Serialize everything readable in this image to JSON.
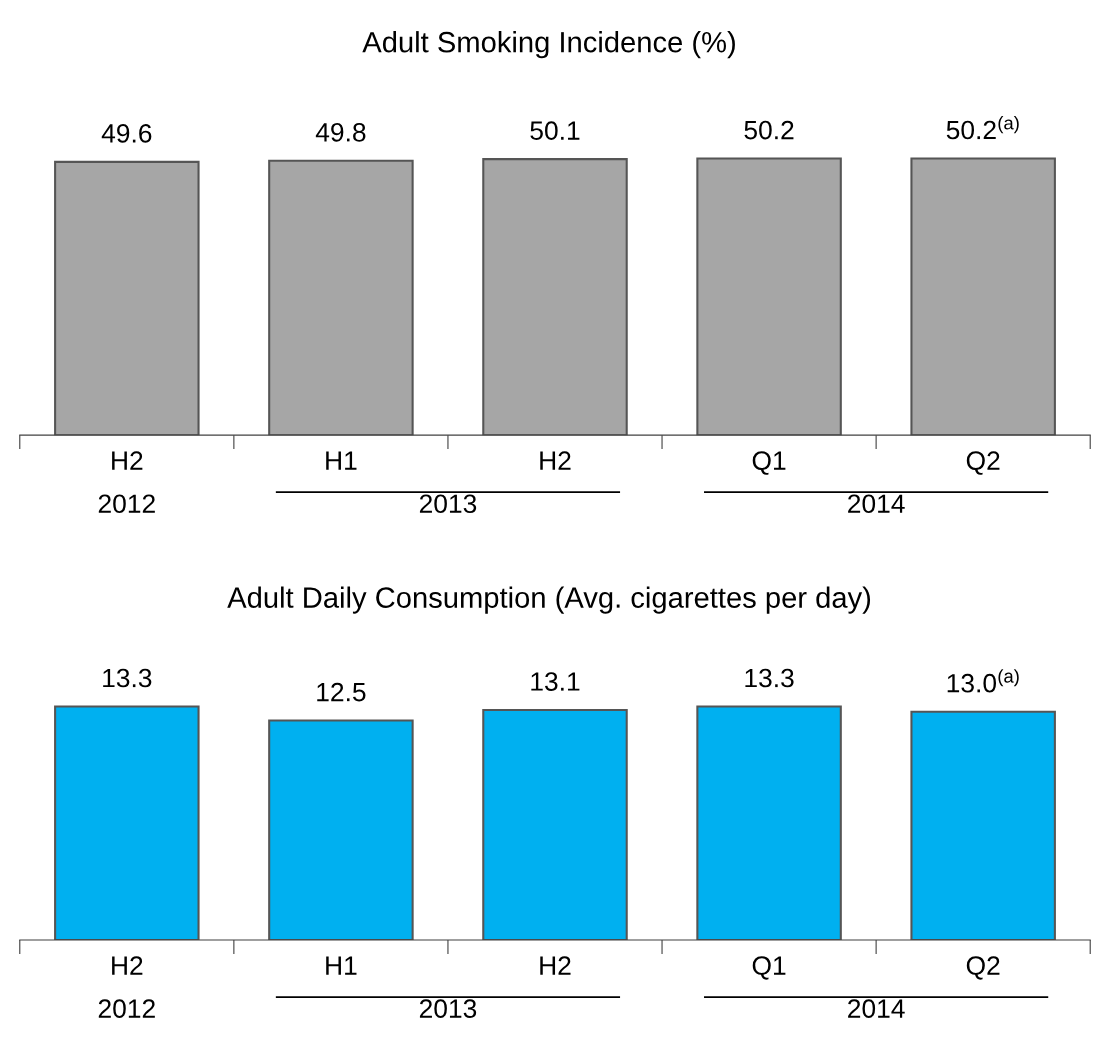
{
  "chart_data": [
    {
      "type": "bar",
      "title": "Adult Smoking Incidence (%)",
      "categories": [
        "H2",
        "H1",
        "H2",
        "Q1",
        "Q2"
      ],
      "values": [
        49.6,
        49.8,
        50.1,
        50.2,
        50.2
      ],
      "value_labels": [
        "49.6",
        "49.8",
        "50.1",
        "50.2",
        "50.2$^{(a)}$"
      ],
      "color": "#a6a6a6",
      "tick_labels": "x",
      "annotations": [
        "2012",
        "2013",
        "2014"
      ]
    },
    {
      "type": "bar",
      "title": "Adult Daily Consumption (Avg. cigarettes per day)",
      "categories": [
        "H2",
        "H1",
        "H2",
        "Q1",
        "Q2"
      ],
      "values": [
        13.3,
        12.5,
        13.1,
        13.3,
        13.0
      ],
      "value_labels": [
        "13.3",
        "12.5",
        "13.1",
        "13.3",
        "13.0$^{(a)}$"
      ],
      "color": "#00b0f0",
      "tick_labels": "x",
      "annotations": [
        "2012",
        "2013",
        "2014"
      ]
    }
  ]
}
